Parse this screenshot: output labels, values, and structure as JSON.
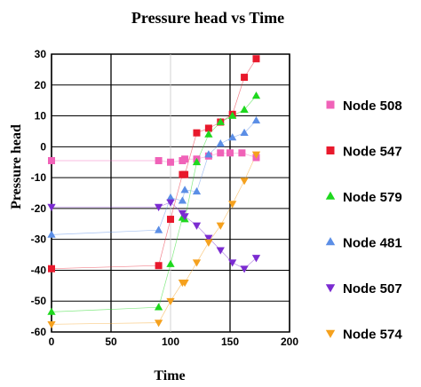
{
  "chart_data": {
    "type": "scatter",
    "title": "Pressure head vs Time",
    "xlabel": "Time",
    "ylabel": "Pressure head",
    "xlim": [
      0,
      200
    ],
    "ylim": [
      -60,
      30
    ],
    "xticks": [
      0,
      50,
      100,
      150,
      200
    ],
    "yticks": [
      30,
      20,
      10,
      0,
      -10,
      -20,
      -30,
      -40,
      -50,
      -60
    ],
    "xticklabels": [
      "0",
      "50",
      "100",
      "150",
      "200"
    ],
    "yticklabels": [
      "30",
      "20",
      "10",
      "0",
      "-10",
      "-20",
      "-30",
      "-40",
      "-50",
      "-60"
    ],
    "grid": "major gridlines on",
    "legend_position": "right",
    "series": [
      {
        "name": "Node 508",
        "marker": "square",
        "color": "#f062b8",
        "points": [
          [
            0,
            -4.5
          ],
          [
            90,
            -4.5
          ],
          [
            100,
            -5
          ],
          [
            110,
            -4.5
          ],
          [
            112,
            -4
          ],
          [
            122,
            -4
          ],
          [
            132,
            -3
          ],
          [
            142,
            -2
          ],
          [
            150,
            -2
          ],
          [
            160,
            -2
          ],
          [
            172,
            -3.5
          ]
        ]
      },
      {
        "name": "Node 547",
        "marker": "square",
        "color": "#e8192c",
        "points": [
          [
            0,
            -39.5
          ],
          [
            90,
            -38.5
          ],
          [
            100,
            -23.5
          ],
          [
            110,
            -9
          ],
          [
            112,
            -9
          ],
          [
            122,
            4.5
          ],
          [
            132,
            6
          ],
          [
            142,
            8
          ],
          [
            152,
            10.5
          ],
          [
            162,
            22.5
          ],
          [
            172,
            28.5
          ]
        ]
      },
      {
        "name": "Node 579",
        "marker": "triangle-up",
        "color": "#1ed81e",
        "points": [
          [
            0,
            -53.5
          ],
          [
            90,
            -52
          ],
          [
            100,
            -38
          ],
          [
            110,
            -23
          ],
          [
            112,
            -23.5
          ],
          [
            122,
            -5
          ],
          [
            132,
            4
          ],
          [
            142,
            8
          ],
          [
            152,
            10
          ],
          [
            162,
            12
          ],
          [
            172,
            16.5
          ]
        ]
      },
      {
        "name": "Node 481",
        "marker": "triangle-up",
        "color": "#5b8ee6",
        "points": [
          [
            0,
            -28.5
          ],
          [
            90,
            -27
          ],
          [
            100,
            -16.5
          ],
          [
            110,
            -17.5
          ],
          [
            112,
            -14
          ],
          [
            122,
            -14.5
          ],
          [
            132,
            -2.5
          ],
          [
            142,
            1
          ],
          [
            152,
            3
          ],
          [
            162,
            4.5
          ],
          [
            172,
            8.5
          ]
        ]
      },
      {
        "name": "Node 507",
        "marker": "triangle-down",
        "color": "#7b2bd1",
        "points": [
          [
            0,
            -19.5
          ],
          [
            90,
            -19.5
          ],
          [
            100,
            -18
          ],
          [
            110,
            -21.5
          ],
          [
            112,
            -22.5
          ],
          [
            122,
            -25.5
          ],
          [
            132,
            -29.5
          ],
          [
            142,
            -33.5
          ],
          [
            152,
            -37.5
          ],
          [
            162,
            -39.5
          ],
          [
            172,
            -36
          ]
        ]
      },
      {
        "name": "Node 574",
        "marker": "triangle-down",
        "color": "#f5a11e",
        "points": [
          [
            0,
            -57.5
          ],
          [
            90,
            -57
          ],
          [
            100,
            -50
          ],
          [
            110,
            -44
          ],
          [
            112,
            -44
          ],
          [
            122,
            -37.5
          ],
          [
            132,
            -31
          ],
          [
            142,
            -25.5
          ],
          [
            152,
            -18.5
          ],
          [
            162,
            -11
          ],
          [
            172,
            -2.5
          ]
        ]
      }
    ]
  }
}
